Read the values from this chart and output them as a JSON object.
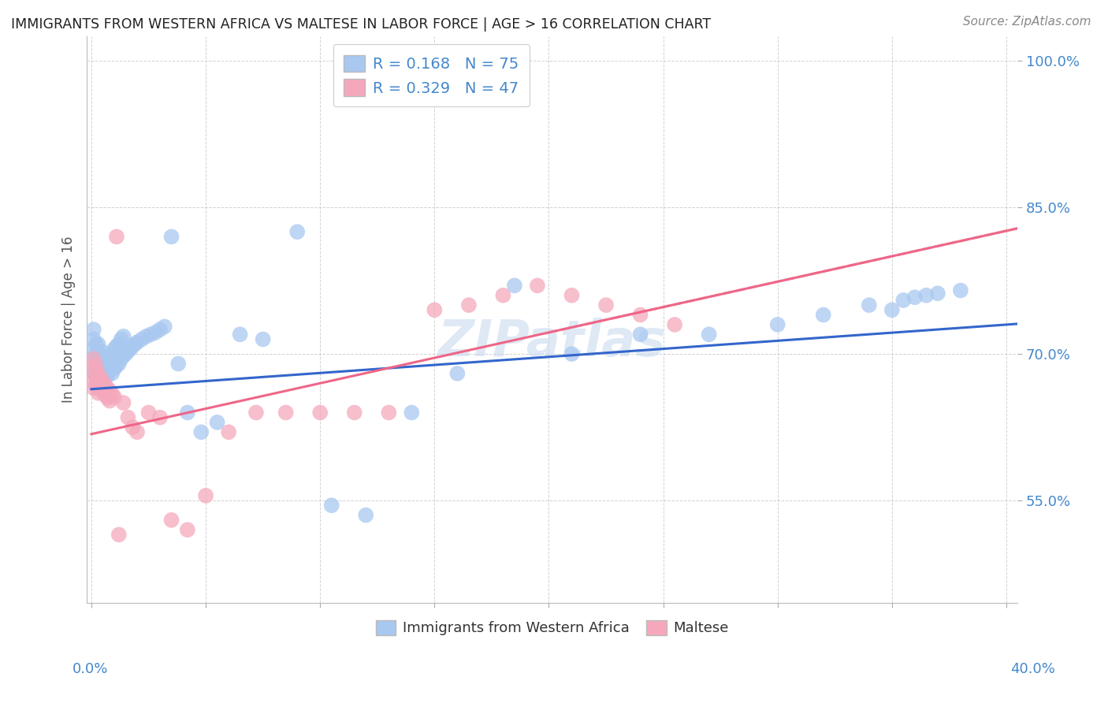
{
  "title": "IMMIGRANTS FROM WESTERN AFRICA VS MALTESE IN LABOR FORCE | AGE > 16 CORRELATION CHART",
  "source": "Source: ZipAtlas.com",
  "ylabel_labels": [
    "55.0%",
    "70.0%",
    "85.0%",
    "100.0%"
  ],
  "ylabel_values": [
    0.55,
    0.7,
    0.85,
    1.0
  ],
  "ylabel_axis_label": "In Labor Force | Age > 16",
  "xlim": [
    -0.002,
    0.405
  ],
  "ylim": [
    0.445,
    1.025
  ],
  "blue_R": 0.168,
  "blue_N": 75,
  "pink_R": 0.329,
  "pink_N": 47,
  "blue_color": "#A8C8F0",
  "pink_color": "#F5A8BC",
  "blue_line_color": "#3366CC",
  "pink_line_color": "#EE6688",
  "background_color": "#FFFFFF",
  "grid_color": "#CCCCCC",
  "title_color": "#222222",
  "axis_label_color": "#4488CC",
  "legend_R_color": "#4488CC",
  "blue_trend_intercept": 0.664,
  "blue_trend_slope": 0.165,
  "pink_trend_intercept": 0.618,
  "pink_trend_slope": 0.52,
  "blue_x": [
    0.001,
    0.001,
    0.001,
    0.001,
    0.001,
    0.002,
    0.002,
    0.002,
    0.002,
    0.002,
    0.003,
    0.003,
    0.003,
    0.003,
    0.004,
    0.004,
    0.004,
    0.005,
    0.005,
    0.005,
    0.006,
    0.006,
    0.007,
    0.007,
    0.008,
    0.008,
    0.009,
    0.009,
    0.01,
    0.01,
    0.011,
    0.011,
    0.012,
    0.012,
    0.013,
    0.013,
    0.014,
    0.014,
    0.015,
    0.016,
    0.017,
    0.018,
    0.019,
    0.02,
    0.022,
    0.024,
    0.026,
    0.028,
    0.03,
    0.032,
    0.035,
    0.038,
    0.042,
    0.048,
    0.055,
    0.065,
    0.075,
    0.09,
    0.105,
    0.12,
    0.14,
    0.16,
    0.185,
    0.21,
    0.24,
    0.27,
    0.3,
    0.32,
    0.34,
    0.35,
    0.355,
    0.36,
    0.365,
    0.37,
    0.38
  ],
  "blue_y": [
    0.68,
    0.695,
    0.705,
    0.715,
    0.725,
    0.668,
    0.678,
    0.688,
    0.7,
    0.71,
    0.665,
    0.68,
    0.695,
    0.71,
    0.67,
    0.685,
    0.7,
    0.672,
    0.688,
    0.702,
    0.675,
    0.692,
    0.678,
    0.695,
    0.682,
    0.698,
    0.68,
    0.7,
    0.685,
    0.705,
    0.688,
    0.708,
    0.69,
    0.71,
    0.695,
    0.715,
    0.698,
    0.718,
    0.7,
    0.703,
    0.705,
    0.708,
    0.71,
    0.712,
    0.715,
    0.718,
    0.72,
    0.722,
    0.725,
    0.728,
    0.82,
    0.69,
    0.64,
    0.62,
    0.63,
    0.72,
    0.715,
    0.825,
    0.545,
    0.535,
    0.64,
    0.68,
    0.77,
    0.7,
    0.72,
    0.72,
    0.73,
    0.74,
    0.75,
    0.745,
    0.755,
    0.758,
    0.76,
    0.762,
    0.765
  ],
  "pink_x": [
    0.001,
    0.001,
    0.001,
    0.001,
    0.002,
    0.002,
    0.002,
    0.003,
    0.003,
    0.003,
    0.004,
    0.004,
    0.005,
    0.005,
    0.006,
    0.006,
    0.007,
    0.007,
    0.008,
    0.008,
    0.009,
    0.01,
    0.011,
    0.012,
    0.014,
    0.016,
    0.018,
    0.02,
    0.025,
    0.03,
    0.035,
    0.042,
    0.05,
    0.06,
    0.072,
    0.085,
    0.1,
    0.115,
    0.13,
    0.15,
    0.165,
    0.18,
    0.195,
    0.21,
    0.225,
    0.24,
    0.255
  ],
  "pink_y": [
    0.695,
    0.685,
    0.675,
    0.665,
    0.688,
    0.678,
    0.668,
    0.68,
    0.67,
    0.66,
    0.675,
    0.665,
    0.672,
    0.662,
    0.668,
    0.658,
    0.665,
    0.655,
    0.662,
    0.652,
    0.659,
    0.656,
    0.82,
    0.515,
    0.65,
    0.635,
    0.625,
    0.62,
    0.64,
    0.635,
    0.53,
    0.52,
    0.555,
    0.62,
    0.64,
    0.64,
    0.64,
    0.64,
    0.64,
    0.745,
    0.75,
    0.76,
    0.77,
    0.76,
    0.75,
    0.74,
    0.73
  ]
}
